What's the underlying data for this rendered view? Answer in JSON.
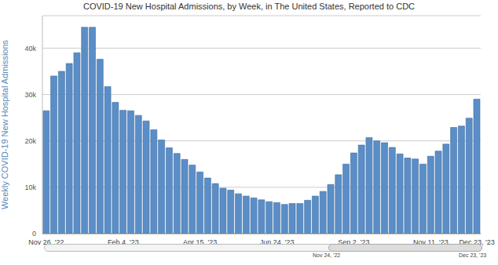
{
  "chart_data": {
    "type": "bar",
    "title": "COVID-19 New Hospital Admissions, by Week, in The United States, Reported to CDC",
    "y_label": "Weekly COVID-19 New Hospital Admissions",
    "categories": [
      "Nov 26, '22",
      null,
      null,
      null,
      null,
      null,
      null,
      null,
      null,
      null,
      "Feb 4, '23",
      null,
      null,
      null,
      null,
      null,
      null,
      null,
      null,
      null,
      "Apr 15, '23",
      null,
      null,
      null,
      null,
      null,
      null,
      null,
      null,
      null,
      "Jun 24, '23",
      null,
      null,
      null,
      null,
      null,
      null,
      null,
      null,
      null,
      "Sep 2, '23",
      null,
      null,
      null,
      null,
      null,
      null,
      null,
      null,
      null,
      "Nov 11, '23",
      null,
      null,
      null,
      null,
      null,
      "Dec 23, '23"
    ],
    "values": [
      26500,
      34000,
      35000,
      36700,
      39000,
      44500,
      44500,
      37600,
      31700,
      28300,
      26600,
      26500,
      25500,
      24300,
      22400,
      20200,
      18500,
      17300,
      16000,
      14800,
      13300,
      12000,
      10800,
      9800,
      9400,
      8600,
      8100,
      7700,
      7300,
      6900,
      6700,
      6300,
      6500,
      6500,
      7200,
      8100,
      9100,
      10600,
      12700,
      15000,
      17400,
      19100,
      20700,
      20000,
      19600,
      18600,
      17200,
      16300,
      16100,
      15000,
      16700,
      17800,
      19300,
      22900,
      23200,
      24900,
      29000
    ],
    "color": "#5b8ec7",
    "ylim": [
      0,
      47000
    ],
    "yticks": [
      0,
      {
        "value": 10000,
        "label": "10k"
      },
      {
        "value": 20000,
        "label": "20k"
      },
      {
        "value": 30000,
        "label": "30k"
      },
      {
        "value": 40000,
        "label": "40k"
      }
    ],
    "grid": true,
    "annotations": [
      "Nov 24, '22",
      "Dec 23, '23"
    ]
  }
}
